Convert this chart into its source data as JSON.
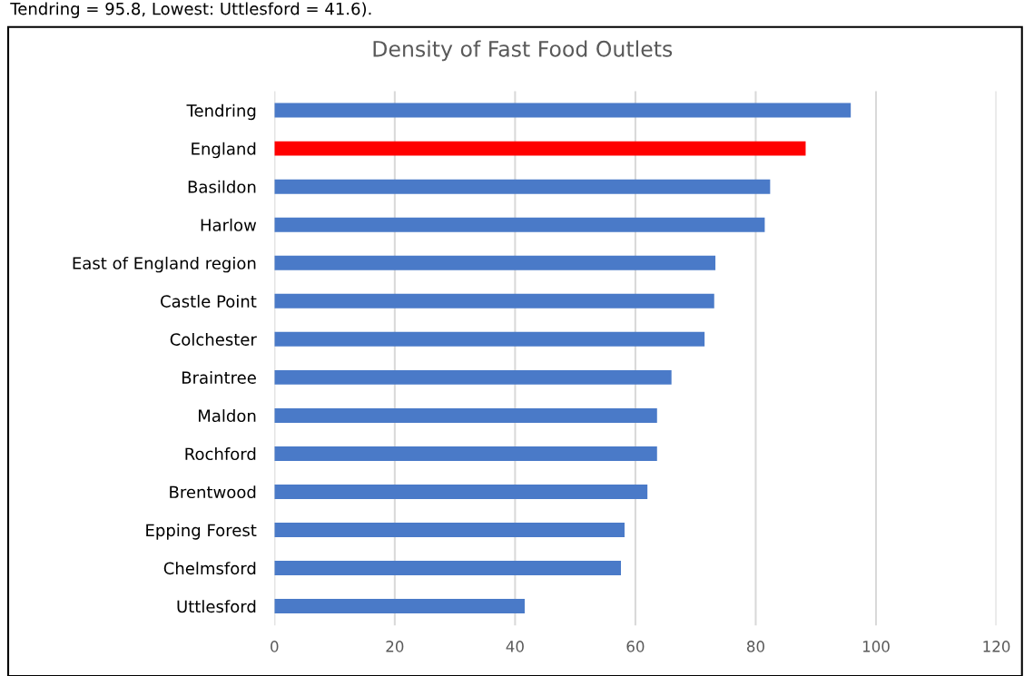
{
  "chart_data": {
    "type": "bar",
    "orientation": "horizontal",
    "title": "Density of Fast Food Outlets",
    "annotations": [
      "Tendring = 95.8, Lowest: Uttlesford = 41.6)."
    ],
    "categories": [
      "Tendring",
      "England",
      "Basildon",
      "Harlow",
      "East of England region",
      "Castle Point",
      "Colchester",
      "Braintree",
      "Maldon",
      "Rochford",
      "Brentwood",
      "Epping Forest",
      "Chelmsford",
      "Uttlesford"
    ],
    "values": [
      95.8,
      88.3,
      82.4,
      81.5,
      73.3,
      73.1,
      71.5,
      66.0,
      63.6,
      63.6,
      62.0,
      58.2,
      57.6,
      41.6
    ],
    "colors": [
      "#4a7ac8",
      "#ff0000",
      "#4a7ac8",
      "#4a7ac8",
      "#4a7ac8",
      "#4a7ac8",
      "#4a7ac8",
      "#4a7ac8",
      "#4a7ac8",
      "#4a7ac8",
      "#4a7ac8",
      "#4a7ac8",
      "#4a7ac8",
      "#4a7ac8"
    ],
    "xlim": [
      0,
      120
    ],
    "xticks": [
      0,
      20,
      40,
      60,
      80,
      100,
      120
    ],
    "grid": "x"
  }
}
